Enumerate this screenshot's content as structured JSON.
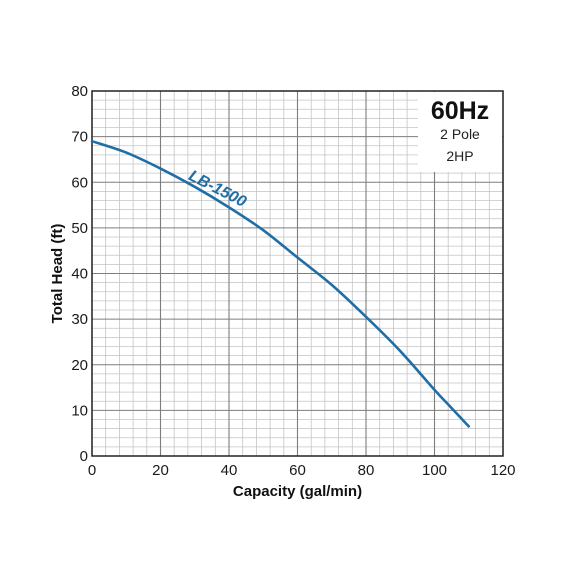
{
  "chart_data": {
    "type": "line",
    "title": "",
    "xlabel": "Capacity (gal/min)",
    "ylabel": "Total Head (ft)",
    "xlim": [
      0,
      120
    ],
    "ylim": [
      0,
      80
    ],
    "xticks": [
      "0",
      "20",
      "40",
      "60",
      "80",
      "100",
      "120"
    ],
    "yticks": [
      "0",
      "10",
      "20",
      "30",
      "40",
      "50",
      "60",
      "70",
      "80"
    ],
    "grid": true,
    "minor_grid": true,
    "info_box": {
      "title": "60Hz",
      "lines": [
        "2 Pole",
        "2HP"
      ],
      "placement": "top-right"
    },
    "series": [
      {
        "name": "LB-1500",
        "color": "#1f6ea6",
        "x": [
          0,
          10,
          20,
          30,
          40,
          50,
          60,
          70,
          80,
          90,
          100,
          105,
          110
        ],
        "y": [
          69,
          66.5,
          63,
          59,
          54.5,
          49.5,
          43.5,
          37.5,
          30.5,
          23,
          14.5,
          10.5,
          6.5
        ]
      }
    ]
  }
}
